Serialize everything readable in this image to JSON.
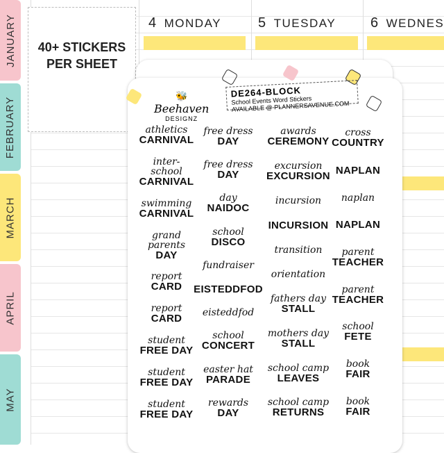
{
  "months": [
    "JANUARY",
    "FEBRUARY",
    "MARCH",
    "APRIL",
    "MAY"
  ],
  "colors": {
    "pink": "#f7c5cc",
    "teal": "#9fdcd4",
    "yellow": "#fde77a"
  },
  "promo": {
    "line1": "40+ STICKERS",
    "line2": "PER SHEET"
  },
  "days": [
    {
      "num": "4",
      "name": "MONDAY"
    },
    {
      "num": "5",
      "name": "TUESDAY"
    },
    {
      "num": "6",
      "name": "WEDNES"
    }
  ],
  "sheet": {
    "code": "DE264-BLOCK",
    "title": "School Events Word Stickers",
    "available": "AVAILABLE @ PLANNERSAVENUE.COM",
    "logo_script": "Beehaven",
    "logo_block": "DESIGNZ"
  },
  "columns": [
    [
      {
        "s": "athletics",
        "b": "CARNIVAL"
      },
      {
        "s": "inter-school",
        "b": "CARNIVAL"
      },
      {
        "s": "swimming",
        "b": "CARNIVAL"
      },
      {
        "s": "grand parents",
        "b": "DAY"
      },
      {
        "s": "report",
        "b": "CARD"
      },
      {
        "s": "report",
        "b": "CARD"
      },
      {
        "s": "student",
        "b": "FREE DAY"
      },
      {
        "s": "student",
        "b": "FREE DAY"
      },
      {
        "s": "student",
        "b": "FREE DAY"
      }
    ],
    [
      {
        "s": "free dress",
        "b": "DAY"
      },
      {
        "s": "free dress",
        "b": "DAY"
      },
      {
        "s": "day",
        "b": "NAIDOC"
      },
      {
        "s": "school",
        "b": "DISCO"
      },
      {
        "s": "fundraiser",
        "b": ""
      },
      {
        "s": "",
        "b": "EISTEDDFOD"
      },
      {
        "s": "eisteddfod",
        "b": ""
      },
      {
        "s": "school",
        "b": "CONCERT"
      },
      {
        "s": "easter hat",
        "b": "PARADE"
      },
      {
        "s": "rewards",
        "b": "DAY"
      }
    ],
    [
      {
        "s": "awards",
        "b": "CEREMONY"
      },
      {
        "s": "excursion",
        "b": "EXCURSION"
      },
      {
        "s": "incursion",
        "b": ""
      },
      {
        "s": "",
        "b": "INCURSION"
      },
      {
        "s": "transition",
        "b": ""
      },
      {
        "s": "orientation",
        "b": ""
      },
      {
        "s": "fathers day",
        "b": "STALL"
      },
      {
        "s": "mothers day",
        "b": "STALL"
      },
      {
        "s": "school camp",
        "b": "LEAVES"
      },
      {
        "s": "school camp",
        "b": "RETURNS"
      }
    ],
    [
      {
        "s": "cross",
        "b": "COUNTRY"
      },
      {
        "s": "",
        "b": "NAPLAN"
      },
      {
        "s": "naplan",
        "b": ""
      },
      {
        "s": "",
        "b": "NAPLAN"
      },
      {
        "s": "parent",
        "b": "TEACHER"
      },
      {
        "s": "parent",
        "b": "TEACHER"
      },
      {
        "s": "school",
        "b": "FETE"
      },
      {
        "s": "book",
        "b": "FAIR"
      },
      {
        "s": "book",
        "b": "FAIR"
      }
    ]
  ]
}
